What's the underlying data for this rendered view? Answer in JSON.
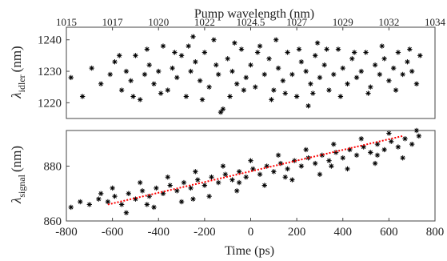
{
  "figure": {
    "top_axis_label": "Pump wavelength (nm)",
    "top_ticks": [
      "1015",
      "1017",
      "1020",
      "1022",
      "1024.5",
      "1027",
      "1029",
      "1032",
      "1034"
    ],
    "x_label": "Time (ps)",
    "idler_ylabel_main": "λ",
    "idler_ylabel_sub": "idler",
    "idler_ylabel_unit": "(nm)",
    "signal_ylabel_main": "λ",
    "signal_ylabel_sub": "signal",
    "signal_ylabel_unit": "(nm)"
  },
  "chart_data": [
    {
      "type": "scatter",
      "panel": "idler",
      "title": "",
      "xlabel": "",
      "ylabel": "λidler (nm)",
      "top_xlabel": "Pump wavelength (nm)",
      "top_x_ticks": [
        "1015",
        "1017",
        "1020",
        "1022",
        "1024.5",
        "1027",
        "1029",
        "1032",
        "1034"
      ],
      "xlim": [
        -800,
        800
      ],
      "ylim": [
        1215,
        1244
      ],
      "y_ticks": [
        1220,
        1230,
        1240
      ],
      "marker": "asterisk",
      "marker_color": "#000000",
      "grid": false,
      "series": [
        {
          "points": [
            [
              -780,
              1228
            ],
            [
              -730,
              1222
            ],
            [
              -690,
              1231
            ],
            [
              -650,
              1226
            ],
            [
              -610,
              1229
            ],
            [
              -590,
              1233
            ],
            [
              -560,
              1224
            ],
            [
              -540,
              1230
            ],
            [
              -520,
              1227
            ],
            [
              -500,
              1235
            ],
            [
              -480,
              1221
            ],
            [
              -460,
              1229
            ],
            [
              -440,
              1232
            ],
            [
              -420,
              1226
            ],
            [
              -400,
              1230
            ],
            [
              -380,
              1238
            ],
            [
              -360,
              1224
            ],
            [
              -340,
              1231
            ],
            [
              -320,
              1228
            ],
            [
              -300,
              1235
            ],
            [
              -280,
              1222
            ],
            [
              -260,
              1230
            ],
            [
              -240,
              1233
            ],
            [
              -220,
              1227
            ],
            [
              -200,
              1236
            ],
            [
              -180,
              1225
            ],
            [
              -160,
              1240
            ],
            [
              -140,
              1229
            ],
            [
              -120,
              1218
            ],
            [
              -100,
              1234
            ],
            [
              -80,
              1230
            ],
            [
              -60,
              1226
            ],
            [
              -40,
              1237
            ],
            [
              -20,
              1228
            ],
            [
              0,
              1232
            ],
            [
              20,
              1225
            ],
            [
              40,
              1238
            ],
            [
              60,
              1229
            ],
            [
              80,
              1234
            ],
            [
              100,
              1224
            ],
            [
              120,
              1231
            ],
            [
              140,
              1227
            ],
            [
              160,
              1236
            ],
            [
              180,
              1229
            ],
            [
              200,
              1222
            ],
            [
              220,
              1233
            ],
            [
              240,
              1230
            ],
            [
              260,
              1226
            ],
            [
              280,
              1235
            ],
            [
              300,
              1228
            ],
            [
              320,
              1232
            ],
            [
              340,
              1224
            ],
            [
              360,
              1229
            ],
            [
              380,
              1237
            ],
            [
              400,
              1231
            ],
            [
              420,
              1226
            ],
            [
              440,
              1234
            ],
            [
              460,
              1228
            ],
            [
              480,
              1230
            ],
            [
              500,
              1236
            ],
            [
              520,
              1225
            ],
            [
              540,
              1232
            ],
            [
              560,
              1229
            ],
            [
              580,
              1234
            ],
            [
              600,
              1227
            ],
            [
              620,
              1231
            ],
            [
              640,
              1236
            ],
            [
              660,
              1229
            ],
            [
              680,
              1233
            ],
            [
              700,
              1230
            ],
            [
              720,
              1226
            ],
            [
              735,
              1235
            ],
            [
              -570,
              1235
            ],
            [
              -510,
              1222
            ],
            [
              -450,
              1237
            ],
            [
              -390,
              1223
            ],
            [
              -330,
              1236
            ],
            [
              -270,
              1238
            ],
            [
              -210,
              1221
            ],
            [
              -150,
              1232
            ],
            [
              -90,
              1222
            ],
            [
              -30,
              1224
            ],
            [
              30,
              1236
            ],
            [
              90,
              1221
            ],
            [
              150,
              1223
            ],
            [
              210,
              1237
            ],
            [
              270,
              1223
            ],
            [
              330,
              1237
            ],
            [
              390,
              1222
            ],
            [
              450,
              1236
            ],
            [
              510,
              1223
            ],
            [
              570,
              1238
            ],
            [
              630,
              1224
            ],
            [
              690,
              1237
            ],
            [
              -250,
              1241
            ],
            [
              -70,
              1239
            ],
            [
              110,
              1240
            ],
            [
              290,
              1239
            ],
            [
              -130,
              1217
            ],
            [
              250,
              1219
            ]
          ]
        }
      ]
    },
    {
      "type": "scatter",
      "panel": "signal",
      "title": "",
      "xlabel": "Time (ps)",
      "ylabel": "λsignal (nm)",
      "xlim": [
        -800,
        800
      ],
      "ylim": [
        860,
        893
      ],
      "x_ticks": [
        -800,
        -600,
        -400,
        -200,
        0,
        200,
        400,
        600,
        800
      ],
      "y_ticks": [
        860,
        880
      ],
      "marker": "asterisk",
      "marker_color": "#000000",
      "grid": false,
      "fit_line": {
        "color": "#ff0000",
        "style": "dotted",
        "x": [
          -620,
          660
        ],
        "y": [
          866,
          891
        ]
      },
      "series": [
        {
          "points": [
            [
              -780,
              865
            ],
            [
              -740,
              867
            ],
            [
              -700,
              866
            ],
            [
              -660,
              868
            ],
            [
              -620,
              867
            ],
            [
              -590,
              869
            ],
            [
              -560,
              866
            ],
            [
              -530,
              870
            ],
            [
              -500,
              868
            ],
            [
              -470,
              871
            ],
            [
              -440,
              869
            ],
            [
              -410,
              872
            ],
            [
              -380,
              870
            ],
            [
              -350,
              873
            ],
            [
              -320,
              871
            ],
            [
              -290,
              874
            ],
            [
              -260,
              872
            ],
            [
              -230,
              875
            ],
            [
              -200,
              873
            ],
            [
              -170,
              876
            ],
            [
              -140,
              874
            ],
            [
              -110,
              877
            ],
            [
              -80,
              875
            ],
            [
              -50,
              878
            ],
            [
              -20,
              876
            ],
            [
              10,
              879
            ],
            [
              40,
              877
            ],
            [
              70,
              880
            ],
            [
              100,
              878
            ],
            [
              130,
              881
            ],
            [
              160,
              879
            ],
            [
              190,
              882
            ],
            [
              220,
              880
            ],
            [
              250,
              883
            ],
            [
              280,
              881
            ],
            [
              310,
              884
            ],
            [
              340,
              882
            ],
            [
              370,
              885
            ],
            [
              400,
              883
            ],
            [
              430,
              886
            ],
            [
              460,
              884
            ],
            [
              490,
              887
            ],
            [
              520,
              885
            ],
            [
              550,
              888
            ],
            [
              580,
              886
            ],
            [
              610,
              889
            ],
            [
              640,
              887
            ],
            [
              670,
              890
            ],
            [
              700,
              888
            ],
            [
              730,
              891
            ],
            [
              -600,
              872
            ],
            [
              -540,
              863
            ],
            [
              -480,
              874
            ],
            [
              -420,
              865
            ],
            [
              -360,
              876
            ],
            [
              -300,
              867
            ],
            [
              -240,
              878
            ],
            [
              -180,
              869
            ],
            [
              -120,
              880
            ],
            [
              -60,
              871
            ],
            [
              0,
              882
            ],
            [
              60,
              873
            ],
            [
              120,
              884
            ],
            [
              180,
              875
            ],
            [
              240,
              886
            ],
            [
              300,
              877
            ],
            [
              360,
              888
            ],
            [
              420,
              879
            ],
            [
              480,
              890
            ],
            [
              540,
              881
            ],
            [
              600,
              892
            ],
            [
              660,
              883
            ],
            [
              -650,
              870
            ],
            [
              -450,
              866
            ],
            [
              -250,
              868
            ],
            [
              -50,
              874
            ],
            [
              150,
              876
            ],
            [
              350,
              880
            ],
            [
              550,
              884
            ],
            [
              720,
              893
            ]
          ]
        }
      ]
    }
  ]
}
